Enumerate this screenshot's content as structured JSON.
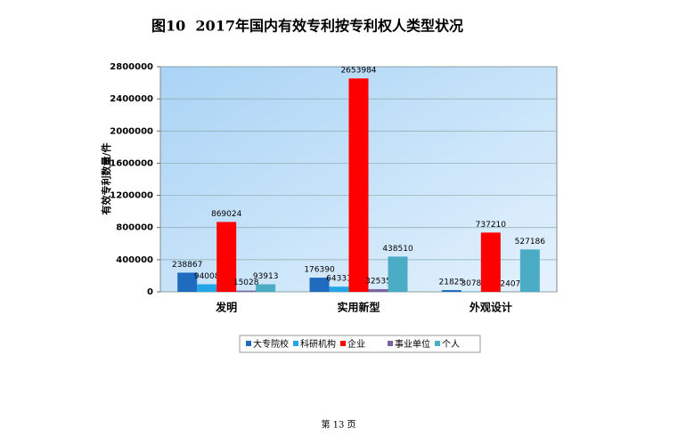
{
  "chart_data": {
    "type": "bar",
    "title": "图10  2017年国内有效专利按专利权人类型状况",
    "y_label": "有效专利数量/件",
    "categories": [
      "发明",
      "实用新型",
      "外观设计"
    ],
    "series": [
      {
        "name": "大专院校",
        "color": "#1f6cbf",
        "values": [
          238867,
          176390,
          21825
        ]
      },
      {
        "name": "科研机构",
        "color": "#22a6e8",
        "values": [
          94008,
          64331,
          3078
        ]
      },
      {
        "name": "企业",
        "color": "#ff0000",
        "values": [
          869024,
          2653984,
          737210
        ]
      },
      {
        "name": "事业单位",
        "color": "#7b62a3",
        "values": [
          15028,
          32535,
          2407
        ]
      },
      {
        "name": "个人",
        "color": "#4bacc6",
        "values": [
          93913,
          438510,
          527186
        ]
      }
    ],
    "ylim": [
      0,
      2800000
    ],
    "yticks": [
      0,
      400000,
      800000,
      1200000,
      1600000,
      2000000,
      2400000,
      2800000
    ],
    "grid": true,
    "legend": "bottom",
    "footer": "第 13 页"
  }
}
